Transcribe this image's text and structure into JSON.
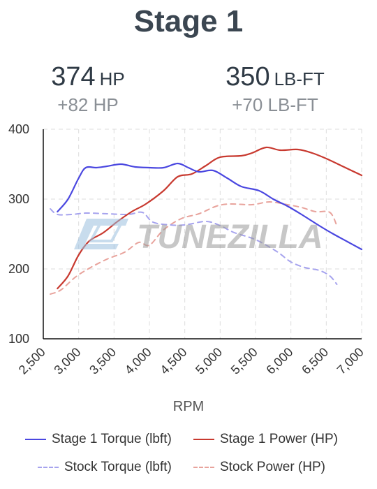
{
  "title": "Stage 1",
  "stats": {
    "hp": {
      "value": "374",
      "unit": "HP",
      "delta": "+82 HP"
    },
    "torque": {
      "value": "350",
      "unit": "LB-FT",
      "delta": "+70 LB-FT"
    }
  },
  "watermark": "TUNEZILLA",
  "colors": {
    "torque": "#4a47e0",
    "power": "#c8392f",
    "stock_torque": "#a6a3ee",
    "stock_power": "#e8a39c"
  },
  "chart_data": {
    "type": "line",
    "xlabel": "RPM",
    "ylabel": "",
    "xlim": [
      2500,
      7000
    ],
    "ylim": [
      100,
      400
    ],
    "x_ticks": [
      "2,500",
      "3,000",
      "3,500",
      "4,000",
      "4,500",
      "5,000",
      "5,500",
      "6,000",
      "6,500",
      "7,000"
    ],
    "y_ticks": [
      "100",
      "200",
      "300",
      "400"
    ],
    "grid": true,
    "legend_position": "bottom",
    "series": [
      {
        "name": "Stage 1 Torque (lbft)",
        "style": "solid",
        "color": "#4a47e0",
        "points": [
          [
            2700,
            282
          ],
          [
            2850,
            300
          ],
          [
            3000,
            330
          ],
          [
            3100,
            345
          ],
          [
            3250,
            345
          ],
          [
            3400,
            347
          ],
          [
            3600,
            350
          ],
          [
            3800,
            346
          ],
          [
            4000,
            345
          ],
          [
            4200,
            345
          ],
          [
            4400,
            351
          ],
          [
            4550,
            345
          ],
          [
            4700,
            339
          ],
          [
            4900,
            341
          ],
          [
            5100,
            330
          ],
          [
            5300,
            318
          ],
          [
            5550,
            312
          ],
          [
            5750,
            300
          ],
          [
            5950,
            290
          ],
          [
            6150,
            278
          ],
          [
            6400,
            262
          ],
          [
            6600,
            250
          ],
          [
            6800,
            239
          ],
          [
            7000,
            228
          ]
        ]
      },
      {
        "name": "Stage 1 Power (HP)",
        "style": "solid",
        "color": "#c8392f",
        "points": [
          [
            2700,
            172
          ],
          [
            2850,
            190
          ],
          [
            3000,
            220
          ],
          [
            3150,
            240
          ],
          [
            3350,
            252
          ],
          [
            3550,
            268
          ],
          [
            3750,
            282
          ],
          [
            3950,
            293
          ],
          [
            4200,
            312
          ],
          [
            4400,
            332
          ],
          [
            4600,
            336
          ],
          [
            4800,
            348
          ],
          [
            5000,
            360
          ],
          [
            5300,
            362
          ],
          [
            5450,
            366
          ],
          [
            5650,
            374
          ],
          [
            5850,
            370
          ],
          [
            6100,
            371
          ],
          [
            6300,
            366
          ],
          [
            6500,
            358
          ],
          [
            6750,
            346
          ],
          [
            7000,
            334
          ]
        ]
      },
      {
        "name": "Stock Torque (lbft)",
        "style": "dashed",
        "color": "#a6a3ee",
        "points": [
          [
            2600,
            286
          ],
          [
            2700,
            278
          ],
          [
            2900,
            278
          ],
          [
            3100,
            280
          ],
          [
            3400,
            279
          ],
          [
            3700,
            278
          ],
          [
            3900,
            281
          ],
          [
            4050,
            267
          ],
          [
            4300,
            263
          ],
          [
            4500,
            263
          ],
          [
            4800,
            268
          ],
          [
            5000,
            262
          ],
          [
            5200,
            252
          ],
          [
            5500,
            242
          ],
          [
            5800,
            225
          ],
          [
            6000,
            210
          ],
          [
            6200,
            202
          ],
          [
            6400,
            198
          ],
          [
            6550,
            190
          ],
          [
            6650,
            178
          ]
        ]
      },
      {
        "name": "Stock Power (HP)",
        "style": "dashed",
        "color": "#e8a39c",
        "points": [
          [
            2600,
            164
          ],
          [
            2750,
            170
          ],
          [
            2950,
            188
          ],
          [
            3150,
            201
          ],
          [
            3400,
            214
          ],
          [
            3650,
            224
          ],
          [
            3850,
            238
          ],
          [
            4000,
            234
          ],
          [
            4200,
            256
          ],
          [
            4450,
            272
          ],
          [
            4700,
            279
          ],
          [
            4950,
            290
          ],
          [
            5150,
            293
          ],
          [
            5450,
            292
          ],
          [
            5700,
            296
          ],
          [
            5950,
            292
          ],
          [
            6150,
            288
          ],
          [
            6350,
            282
          ],
          [
            6550,
            281
          ],
          [
            6650,
            262
          ]
        ]
      }
    ]
  }
}
